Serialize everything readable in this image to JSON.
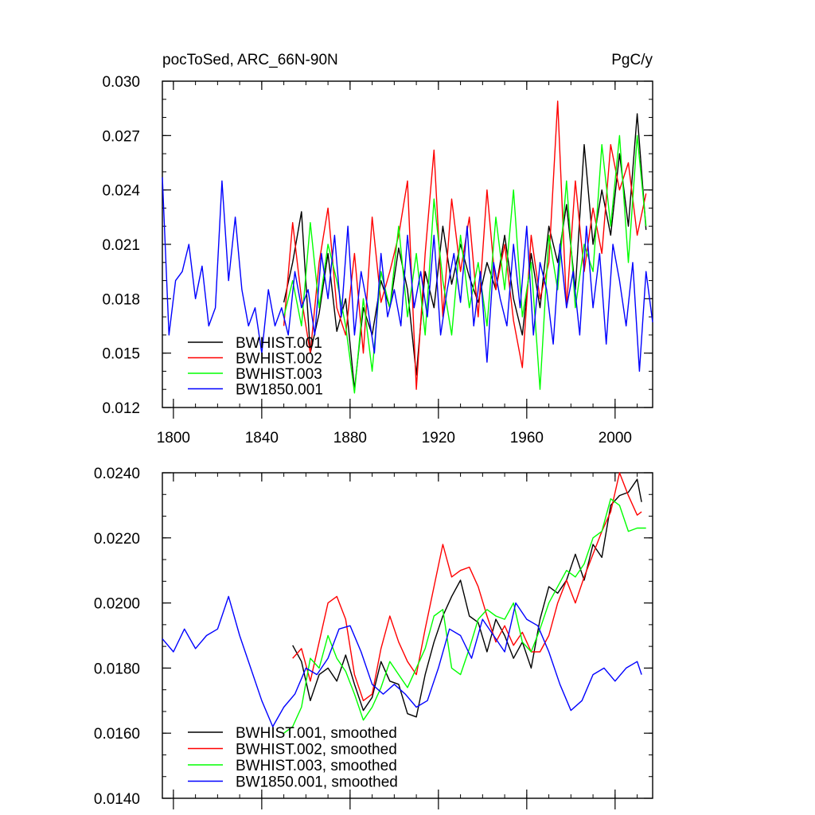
{
  "figure": {
    "title_left": "pocToSed, ARC_66N-90N",
    "title_right": "PgC/y"
  },
  "chart_data": [
    {
      "type": "line",
      "title": "pocToSed, ARC_66N-90N",
      "units": "PgC/y",
      "xlim": [
        1795,
        2017
      ],
      "ylim": [
        0.012,
        0.03
      ],
      "xticks": [
        1800,
        1840,
        1880,
        1920,
        1960,
        2000
      ],
      "xtick_labels": [
        "1800",
        "1840",
        "1880",
        "1920",
        "1960",
        "2000"
      ],
      "yticks": [
        0.012,
        0.015,
        0.018,
        0.021,
        0.024,
        0.027,
        0.03
      ],
      "ytick_labels": [
        "0.012",
        "0.015",
        "0.018",
        "0.021",
        "0.024",
        "0.027",
        "0.030"
      ],
      "legend_position": "bottom-left",
      "series": [
        {
          "name": "BWHIST.001",
          "color": "#000000",
          "x": [
            1850,
            1854,
            1858,
            1862,
            1866,
            1870,
            1874,
            1878,
            1882,
            1886,
            1890,
            1894,
            1898,
            1902,
            1906,
            1910,
            1914,
            1918,
            1922,
            1926,
            1930,
            1934,
            1938,
            1942,
            1946,
            1950,
            1954,
            1958,
            1962,
            1966,
            1970,
            1974,
            1978,
            1982,
            1986,
            1990,
            1994,
            1998,
            2002,
            2006,
            2010,
            2014
          ],
          "y": [
            0.0178,
            0.02,
            0.0228,
            0.015,
            0.0172,
            0.0205,
            0.0162,
            0.018,
            0.013,
            0.0175,
            0.016,
            0.019,
            0.0175,
            0.0208,
            0.0185,
            0.0138,
            0.0195,
            0.0175,
            0.022,
            0.0188,
            0.021,
            0.0192,
            0.0178,
            0.02,
            0.0185,
            0.0215,
            0.018,
            0.016,
            0.0205,
            0.0175,
            0.022,
            0.02,
            0.0232,
            0.0185,
            0.0265,
            0.021,
            0.024,
            0.0215,
            0.026,
            0.022,
            0.0282,
            0.0218
          ]
        },
        {
          "name": "BWHIST.002",
          "color": "#ff0000",
          "x": [
            1850,
            1854,
            1858,
            1862,
            1866,
            1870,
            1874,
            1878,
            1882,
            1886,
            1890,
            1894,
            1898,
            1902,
            1906,
            1910,
            1914,
            1918,
            1922,
            1926,
            1930,
            1934,
            1938,
            1942,
            1946,
            1950,
            1954,
            1958,
            1962,
            1966,
            1970,
            1974,
            1978,
            1982,
            1986,
            1990,
            1994,
            1998,
            2002,
            2006,
            2010,
            2014
          ],
          "y": [
            0.0165,
            0.0222,
            0.018,
            0.015,
            0.02,
            0.023,
            0.0175,
            0.016,
            0.0205,
            0.015,
            0.0225,
            0.0178,
            0.0195,
            0.0215,
            0.0245,
            0.013,
            0.0205,
            0.0262,
            0.017,
            0.0235,
            0.0195,
            0.0225,
            0.017,
            0.024,
            0.0185,
            0.021,
            0.0168,
            0.0142,
            0.0215,
            0.018,
            0.02,
            0.0289,
            0.0175,
            0.0245,
            0.0195,
            0.023,
            0.0205,
            0.0265,
            0.024,
            0.0255,
            0.0215,
            0.0238
          ]
        },
        {
          "name": "BWHIST.003",
          "color": "#00ff00",
          "x": [
            1850,
            1854,
            1858,
            1862,
            1866,
            1870,
            1874,
            1878,
            1882,
            1886,
            1890,
            1894,
            1898,
            1902,
            1906,
            1910,
            1914,
            1918,
            1922,
            1926,
            1930,
            1934,
            1938,
            1942,
            1946,
            1950,
            1954,
            1958,
            1962,
            1966,
            1970,
            1974,
            1978,
            1982,
            1986,
            1990,
            1994,
            1998,
            2002,
            2006,
            2010,
            2014
          ],
          "y": [
            0.017,
            0.019,
            0.0165,
            0.0222,
            0.0175,
            0.021,
            0.019,
            0.0165,
            0.0128,
            0.018,
            0.014,
            0.0195,
            0.0175,
            0.022,
            0.017,
            0.0205,
            0.016,
            0.0235,
            0.019,
            0.016,
            0.0215,
            0.0175,
            0.02,
            0.0165,
            0.0225,
            0.0185,
            0.024,
            0.017,
            0.02,
            0.013,
            0.0215,
            0.0185,
            0.0245,
            0.0175,
            0.021,
            0.0195,
            0.0265,
            0.022,
            0.027,
            0.02,
            0.027,
            0.022
          ]
        },
        {
          "name": "BW1850.001",
          "color": "#0000ff",
          "x": [
            1795,
            1798,
            1801,
            1804,
            1807,
            1810,
            1813,
            1816,
            1819,
            1822,
            1825,
            1828,
            1831,
            1834,
            1837,
            1840,
            1843,
            1846,
            1849,
            1852,
            1855,
            1858,
            1861,
            1864,
            1867,
            1870,
            1873,
            1876,
            1879,
            1882,
            1885,
            1888,
            1891,
            1894,
            1897,
            1900,
            1903,
            1906,
            1909,
            1912,
            1915,
            1918,
            1921,
            1924,
            1927,
            1930,
            1933,
            1936,
            1939,
            1942,
            1945,
            1948,
            1951,
            1954,
            1957,
            1960,
            1963,
            1966,
            1969,
            1972,
            1975,
            1978,
            1981,
            1984,
            1987,
            1990,
            1993,
            1996,
            1999,
            2002,
            2005,
            2008,
            2011,
            2014,
            2017
          ],
          "y": [
            0.0247,
            0.016,
            0.019,
            0.0195,
            0.021,
            0.018,
            0.0198,
            0.0165,
            0.0175,
            0.0245,
            0.019,
            0.0225,
            0.0185,
            0.0165,
            0.0175,
            0.015,
            0.0185,
            0.0165,
            0.0175,
            0.016,
            0.0195,
            0.0175,
            0.0185,
            0.016,
            0.0205,
            0.018,
            0.0215,
            0.017,
            0.022,
            0.016,
            0.0195,
            0.0175,
            0.015,
            0.0205,
            0.017,
            0.0185,
            0.0165,
            0.0215,
            0.0175,
            0.0195,
            0.017,
            0.0215,
            0.016,
            0.0185,
            0.0205,
            0.0178,
            0.022,
            0.0165,
            0.0195,
            0.0145,
            0.02,
            0.018,
            0.0165,
            0.021,
            0.0175,
            0.022,
            0.016,
            0.02,
            0.0185,
            0.0155,
            0.021,
            0.0175,
            0.0195,
            0.016,
            0.022,
            0.0175,
            0.0205,
            0.0155,
            0.021,
            0.019,
            0.0165,
            0.02,
            0.014,
            0.0195,
            0.0167
          ]
        }
      ]
    },
    {
      "type": "line",
      "xlim": [
        1795,
        2017
      ],
      "ylim": [
        0.014,
        0.024
      ],
      "xticks": [
        1800,
        1840,
        1880,
        1920,
        1960,
        2000
      ],
      "yticks": [
        0.014,
        0.016,
        0.018,
        0.02,
        0.022,
        0.024
      ],
      "ytick_labels": [
        "0.0140",
        "0.0160",
        "0.0180",
        "0.0200",
        "0.0220",
        "0.0240"
      ],
      "legend_position": "bottom-left",
      "series": [
        {
          "name": "BWHIST.001, smoothed",
          "color": "#000000",
          "x": [
            1854,
            1858,
            1862,
            1866,
            1870,
            1874,
            1878,
            1882,
            1886,
            1890,
            1894,
            1898,
            1902,
            1906,
            1910,
            1914,
            1918,
            1922,
            1926,
            1930,
            1934,
            1938,
            1942,
            1946,
            1950,
            1954,
            1958,
            1962,
            1966,
            1970,
            1974,
            1978,
            1982,
            1986,
            1990,
            1994,
            1998,
            2002,
            2006,
            2010,
            2012
          ],
          "y": [
            0.0187,
            0.0182,
            0.017,
            0.0178,
            0.018,
            0.0176,
            0.0184,
            0.0175,
            0.0167,
            0.0171,
            0.0182,
            0.0176,
            0.0175,
            0.0166,
            0.0165,
            0.0178,
            0.0188,
            0.0196,
            0.0202,
            0.0207,
            0.0196,
            0.0194,
            0.0185,
            0.0195,
            0.019,
            0.0183,
            0.0188,
            0.018,
            0.0195,
            0.0205,
            0.0203,
            0.0207,
            0.0215,
            0.0207,
            0.0218,
            0.0214,
            0.023,
            0.0233,
            0.0234,
            0.0238,
            0.0231
          ]
        },
        {
          "name": "BWHIST.002, smoothed",
          "color": "#ff0000",
          "x": [
            1854,
            1858,
            1862,
            1866,
            1870,
            1874,
            1878,
            1882,
            1886,
            1890,
            1894,
            1898,
            1902,
            1906,
            1910,
            1914,
            1918,
            1922,
            1926,
            1930,
            1934,
            1938,
            1942,
            1946,
            1950,
            1954,
            1958,
            1962,
            1966,
            1970,
            1974,
            1978,
            1982,
            1986,
            1990,
            1994,
            1998,
            2002,
            2006,
            2010,
            2012
          ],
          "y": [
            0.0183,
            0.0186,
            0.0176,
            0.0188,
            0.02,
            0.0202,
            0.0195,
            0.0178,
            0.017,
            0.0172,
            0.0186,
            0.0196,
            0.0188,
            0.0182,
            0.0178,
            0.0192,
            0.0205,
            0.0218,
            0.0208,
            0.021,
            0.0211,
            0.0205,
            0.0196,
            0.0188,
            0.0193,
            0.0187,
            0.0191,
            0.0185,
            0.0185,
            0.019,
            0.02,
            0.0207,
            0.02,
            0.0208,
            0.0215,
            0.0222,
            0.0228,
            0.024,
            0.0233,
            0.0227,
            0.0228
          ]
        },
        {
          "name": "BWHIST.003, smoothed",
          "color": "#00ff00",
          "x": [
            1850,
            1854,
            1858,
            1862,
            1866,
            1870,
            1874,
            1878,
            1882,
            1886,
            1890,
            1894,
            1898,
            1902,
            1906,
            1910,
            1914,
            1918,
            1922,
            1926,
            1930,
            1934,
            1938,
            1942,
            1946,
            1950,
            1954,
            1958,
            1962,
            1966,
            1970,
            1974,
            1978,
            1982,
            1986,
            1990,
            1994,
            1998,
            2002,
            2006,
            2010,
            2014
          ],
          "y": [
            0.016,
            0.0162,
            0.0168,
            0.0183,
            0.018,
            0.019,
            0.0183,
            0.0179,
            0.0172,
            0.0164,
            0.0168,
            0.0174,
            0.0182,
            0.0178,
            0.0174,
            0.018,
            0.0186,
            0.0196,
            0.0198,
            0.018,
            0.0178,
            0.0186,
            0.0195,
            0.0198,
            0.0196,
            0.0195,
            0.02,
            0.0188,
            0.0185,
            0.0192,
            0.02,
            0.0205,
            0.021,
            0.0208,
            0.0212,
            0.022,
            0.0222,
            0.0232,
            0.023,
            0.0222,
            0.0223,
            0.0223
          ]
        },
        {
          "name": "BW1850.001, smoothed",
          "color": "#0000ff",
          "x": [
            1795,
            1800,
            1805,
            1810,
            1815,
            1820,
            1825,
            1830,
            1835,
            1840,
            1845,
            1850,
            1855,
            1860,
            1865,
            1870,
            1875,
            1880,
            1885,
            1890,
            1895,
            1900,
            1905,
            1910,
            1915,
            1920,
            1925,
            1930,
            1935,
            1940,
            1945,
            1950,
            1955,
            1960,
            1965,
            1970,
            1975,
            1980,
            1985,
            1990,
            1995,
            2000,
            2005,
            2010,
            2012
          ],
          "y": [
            0.0189,
            0.0185,
            0.0192,
            0.0186,
            0.019,
            0.0192,
            0.0202,
            0.019,
            0.018,
            0.017,
            0.0162,
            0.0168,
            0.0172,
            0.018,
            0.0178,
            0.0183,
            0.0192,
            0.0193,
            0.0185,
            0.0175,
            0.0172,
            0.0175,
            0.0172,
            0.0168,
            0.017,
            0.018,
            0.0192,
            0.019,
            0.0183,
            0.0195,
            0.019,
            0.0185,
            0.02,
            0.0195,
            0.0193,
            0.0185,
            0.0175,
            0.0167,
            0.017,
            0.0178,
            0.018,
            0.0176,
            0.018,
            0.0182,
            0.0178
          ]
        }
      ]
    }
  ]
}
